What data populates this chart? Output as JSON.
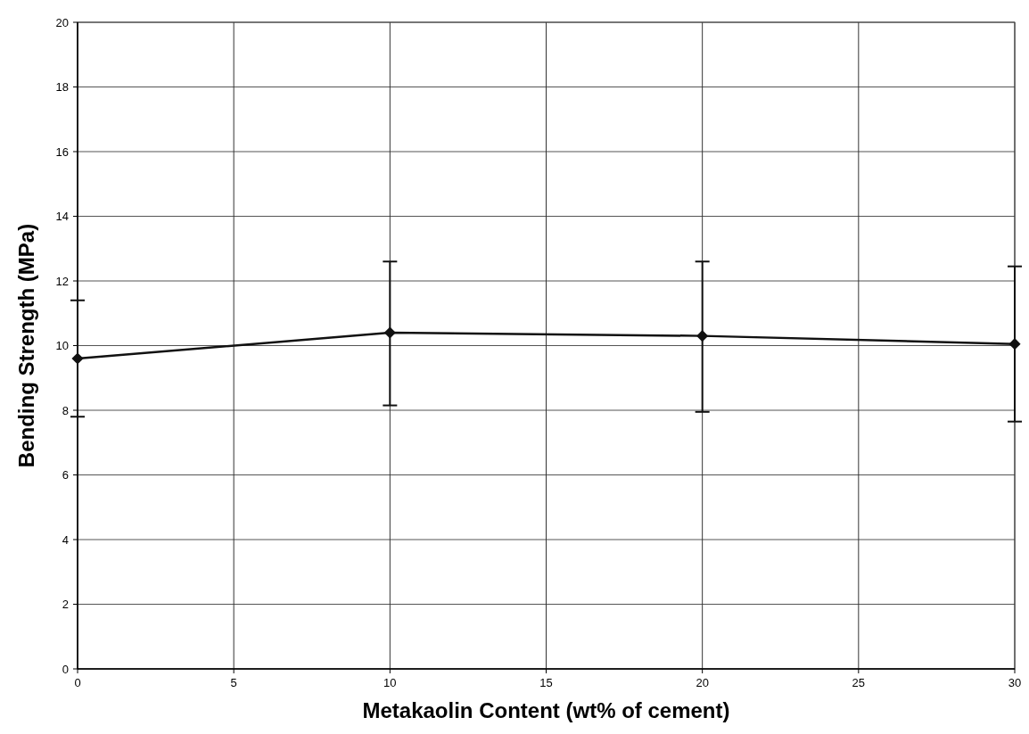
{
  "chart_data": {
    "type": "line",
    "xlabel": "Metakaolin Content (wt% of cement)",
    "ylabel": "Bending Strength (MPa)",
    "x": [
      0,
      10,
      20,
      30
    ],
    "series": [
      {
        "color": "#111111",
        "values": [
          9.6,
          10.4,
          10.3,
          10.05
        ],
        "errors": [
          [
            7.8,
            11.4
          ],
          [
            8.15,
            12.6
          ],
          [
            7.95,
            12.6
          ],
          [
            7.65,
            12.45
          ]
        ]
      }
    ],
    "xlim": [
      0,
      30
    ],
    "xticks": [
      0,
      5,
      10,
      15,
      20,
      25,
      30
    ],
    "ylim": [
      0,
      20
    ],
    "yticks": [
      0,
      2,
      4,
      6,
      8,
      10,
      12,
      14,
      16,
      18,
      20
    ],
    "grid": true,
    "marker": "diamond",
    "line_style": "solid"
  }
}
